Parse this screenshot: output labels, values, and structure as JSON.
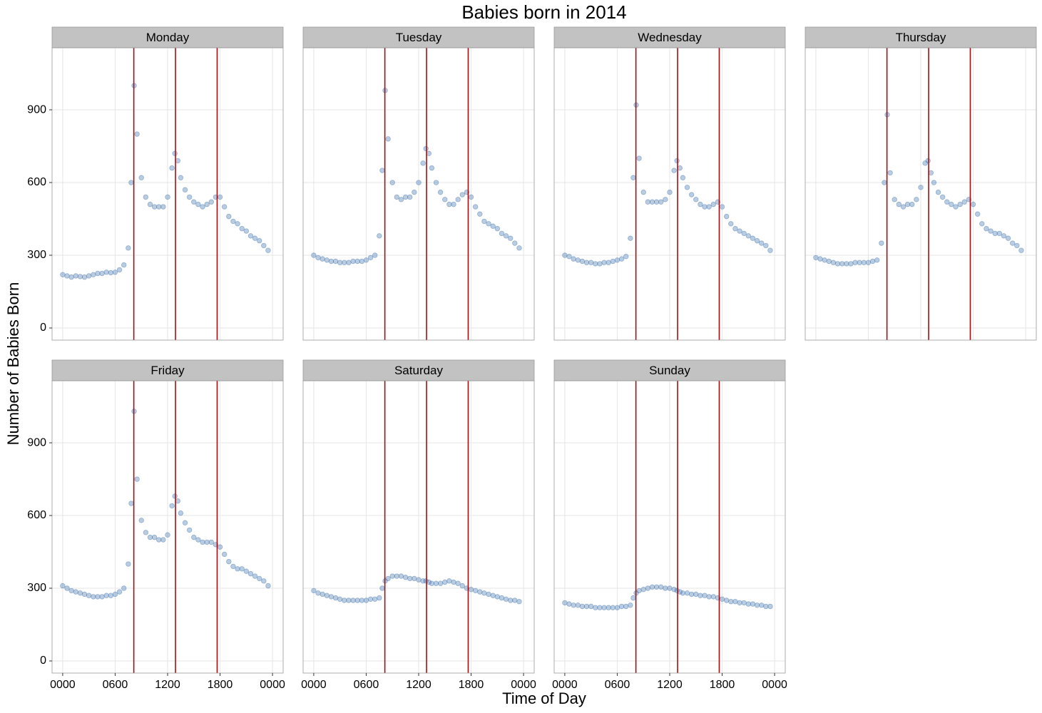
{
  "chart_data": {
    "type": "scatter",
    "title": "Babies born in 2014",
    "x_label": "Time of Day",
    "y_label": "Number of Babies Born",
    "color": "#3a6ea8",
    "vline_color": "#a50f15",
    "grid": true,
    "xlim": [
      -73,
      1513
    ],
    "xticks": [
      {
        "value": 0,
        "label": "0000"
      },
      {
        "value": 360,
        "label": "0600"
      },
      {
        "value": 720,
        "label": "1200"
      },
      {
        "value": 1080,
        "label": "1800"
      },
      {
        "value": 1440,
        "label": "0000"
      }
    ],
    "ylim": [
      -50,
      1156
    ],
    "yticks": [
      0,
      300,
      600,
      900
    ],
    "vlines": [
      488,
      774,
      1060
    ],
    "x": [
      0,
      30,
      60,
      90,
      120,
      150,
      180,
      210,
      240,
      270,
      300,
      330,
      360,
      390,
      420,
      450,
      470,
      490,
      510,
      540,
      570,
      600,
      630,
      660,
      690,
      720,
      750,
      770,
      790,
      810,
      840,
      870,
      900,
      930,
      960,
      990,
      1020,
      1050,
      1080,
      1110,
      1140,
      1170,
      1200,
      1230,
      1260,
      1290,
      1320,
      1350,
      1380,
      1410
    ],
    "series": [
      {
        "name": "Monday",
        "values": [
          220,
          215,
          210,
          215,
          212,
          210,
          215,
          220,
          225,
          225,
          230,
          228,
          230,
          240,
          260,
          330,
          600,
          1000,
          800,
          620,
          540,
          510,
          500,
          500,
          500,
          540,
          660,
          720,
          690,
          620,
          570,
          540,
          520,
          510,
          500,
          510,
          520,
          540,
          540,
          500,
          460,
          440,
          430,
          410,
          400,
          380,
          370,
          360,
          340,
          320
        ]
      },
      {
        "name": "Tuesday",
        "values": [
          300,
          290,
          285,
          280,
          275,
          275,
          270,
          270,
          270,
          275,
          275,
          275,
          280,
          290,
          300,
          380,
          650,
          980,
          780,
          600,
          540,
          530,
          540,
          540,
          560,
          600,
          680,
          740,
          720,
          660,
          600,
          560,
          530,
          510,
          510,
          530,
          550,
          560,
          540,
          500,
          470,
          440,
          430,
          420,
          410,
          390,
          380,
          370,
          350,
          330
        ]
      },
      {
        "name": "Wednesday",
        "values": [
          300,
          295,
          285,
          280,
          275,
          270,
          270,
          265,
          265,
          270,
          270,
          275,
          280,
          285,
          295,
          370,
          620,
          920,
          700,
          560,
          520,
          520,
          520,
          520,
          530,
          560,
          650,
          690,
          660,
          620,
          580,
          550,
          530,
          510,
          500,
          500,
          510,
          520,
          500,
          460,
          430,
          410,
          400,
          390,
          380,
          370,
          360,
          350,
          340,
          320
        ]
      },
      {
        "name": "Thursday",
        "values": [
          290,
          285,
          280,
          275,
          270,
          265,
          265,
          265,
          265,
          270,
          270,
          270,
          270,
          275,
          280,
          350,
          600,
          880,
          640,
          530,
          510,
          500,
          510,
          510,
          530,
          580,
          680,
          690,
          640,
          600,
          560,
          540,
          520,
          510,
          500,
          510,
          520,
          530,
          510,
          470,
          430,
          410,
          400,
          390,
          390,
          380,
          370,
          350,
          340,
          320
        ]
      },
      {
        "name": "Friday",
        "values": [
          310,
          300,
          290,
          285,
          280,
          275,
          270,
          265,
          265,
          265,
          270,
          270,
          275,
          285,
          300,
          400,
          650,
          1030,
          750,
          580,
          530,
          510,
          510,
          500,
          500,
          520,
          640,
          680,
          660,
          610,
          570,
          540,
          510,
          500,
          490,
          490,
          490,
          480,
          470,
          440,
          410,
          390,
          380,
          380,
          370,
          360,
          350,
          340,
          330,
          310
        ]
      },
      {
        "name": "Saturday",
        "values": [
          290,
          280,
          275,
          270,
          265,
          260,
          255,
          250,
          250,
          250,
          250,
          250,
          250,
          255,
          255,
          260,
          300,
          330,
          340,
          350,
          350,
          350,
          345,
          340,
          340,
          335,
          330,
          330,
          325,
          320,
          320,
          320,
          325,
          330,
          325,
          320,
          310,
          300,
          295,
          290,
          285,
          280,
          275,
          270,
          265,
          260,
          255,
          250,
          250,
          245
        ]
      },
      {
        "name": "Sunday",
        "values": [
          240,
          235,
          230,
          230,
          225,
          225,
          225,
          220,
          220,
          220,
          220,
          220,
          220,
          225,
          225,
          230,
          260,
          280,
          290,
          295,
          300,
          305,
          305,
          305,
          300,
          300,
          295,
          290,
          285,
          280,
          280,
          275,
          275,
          270,
          270,
          265,
          265,
          260,
          255,
          250,
          245,
          245,
          240,
          240,
          235,
          235,
          230,
          230,
          225,
          225
        ]
      }
    ]
  }
}
